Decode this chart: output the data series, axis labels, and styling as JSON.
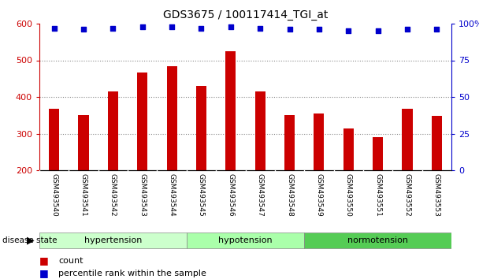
{
  "title": "GDS3675 / 100117414_TGI_at",
  "samples": [
    "GSM493540",
    "GSM493541",
    "GSM493542",
    "GSM493543",
    "GSM493544",
    "GSM493545",
    "GSM493546",
    "GSM493547",
    "GSM493548",
    "GSM493549",
    "GSM493550",
    "GSM493551",
    "GSM493552",
    "GSM493553"
  ],
  "counts": [
    368,
    350,
    415,
    467,
    483,
    430,
    525,
    415,
    350,
    355,
    313,
    290,
    367,
    348
  ],
  "percentiles": [
    97,
    96,
    97,
    98,
    98,
    97,
    98,
    97,
    96,
    96,
    95,
    95,
    96,
    96
  ],
  "groups_info": [
    {
      "name": "hypertension",
      "start": 0,
      "end": 5,
      "color": "#ccffcc"
    },
    {
      "name": "hypotension",
      "start": 5,
      "end": 9,
      "color": "#aaffaa"
    },
    {
      "name": "normotension",
      "start": 9,
      "end": 14,
      "color": "#55cc55"
    }
  ],
  "ylim_left": [
    200,
    600
  ],
  "ylim_right": [
    0,
    100
  ],
  "yticks_left": [
    200,
    300,
    400,
    500,
    600
  ],
  "yticks_right": [
    0,
    25,
    50,
    75,
    100
  ],
  "bar_color": "#cc0000",
  "dot_color": "#0000cc",
  "background_color": "#ffffff",
  "gridline_color": "#888888",
  "xticklabel_bg": "#cccccc",
  "disease_label": "disease state",
  "legend_count": "count",
  "legend_percentile": "percentile rank within the sample",
  "bar_width": 0.35
}
